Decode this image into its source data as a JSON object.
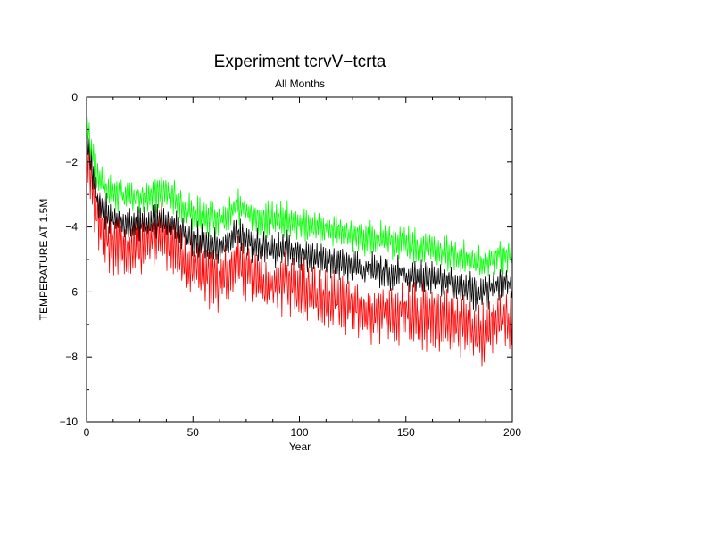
{
  "chart_data": {
    "type": "line",
    "title": "Experiment tcrvV−tcrta",
    "subtitle": "All Months",
    "xlabel": "Year",
    "ylabel": "TEMPERATURE AT 1.5M",
    "xlim": [
      0,
      200
    ],
    "ylim": [
      -10,
      0
    ],
    "xticks": [
      0,
      50,
      100,
      150,
      200
    ],
    "yticks": [
      0,
      -2,
      -4,
      -6,
      -8,
      -10
    ],
    "grid": false,
    "legend": "none",
    "x_step_years": 0.25,
    "series": [
      {
        "color": "#00ff00",
        "description": "upper envelope",
        "x": [
          0,
          2,
          5,
          10,
          15,
          20,
          25,
          30,
          35,
          40,
          45,
          50,
          55,
          60,
          65,
          70,
          75,
          80,
          85,
          90,
          95,
          100,
          105,
          110,
          115,
          120,
          125,
          130,
          135,
          140,
          145,
          150,
          155,
          160,
          165,
          170,
          175,
          180,
          185,
          190,
          195,
          200
        ],
        "mean": [
          -0.8,
          -1.5,
          -2.4,
          -2.9,
          -3.0,
          -3.1,
          -3.1,
          -3.1,
          -2.9,
          -3.0,
          -3.3,
          -3.6,
          -3.7,
          -3.7,
          -3.8,
          -3.3,
          -3.5,
          -3.7,
          -3.8,
          -3.8,
          -3.8,
          -3.9,
          -4.0,
          -4.0,
          -4.1,
          -4.1,
          -4.2,
          -4.3,
          -4.4,
          -4.4,
          -4.5,
          -4.5,
          -4.6,
          -4.6,
          -4.7,
          -4.8,
          -4.9,
          -5.0,
          -5.2,
          -5.0,
          -4.8,
          -4.9
        ],
        "amplitude": 0.45
      },
      {
        "color": "#000000",
        "description": "middle series",
        "x": [
          0,
          2,
          5,
          10,
          15,
          20,
          25,
          30,
          35,
          40,
          45,
          50,
          55,
          60,
          65,
          70,
          75,
          80,
          85,
          90,
          95,
          100,
          105,
          110,
          115,
          120,
          125,
          130,
          135,
          140,
          145,
          150,
          155,
          160,
          165,
          170,
          175,
          180,
          185,
          190,
          195,
          200
        ],
        "mean": [
          -1.0,
          -2.0,
          -3.1,
          -3.6,
          -3.8,
          -3.9,
          -3.9,
          -3.9,
          -3.7,
          -3.9,
          -4.2,
          -4.4,
          -4.5,
          -4.6,
          -4.6,
          -4.2,
          -4.4,
          -4.6,
          -4.7,
          -4.7,
          -4.7,
          -4.8,
          -4.9,
          -5.0,
          -5.1,
          -5.1,
          -5.2,
          -5.3,
          -5.3,
          -5.4,
          -5.4,
          -5.5,
          -5.5,
          -5.6,
          -5.6,
          -5.7,
          -5.8,
          -5.9,
          -6.1,
          -5.9,
          -5.7,
          -5.8
        ],
        "amplitude": 0.45
      },
      {
        "color": "#ff0000",
        "description": "lower envelope",
        "x": [
          0,
          2,
          5,
          10,
          15,
          20,
          25,
          30,
          35,
          40,
          45,
          50,
          55,
          60,
          65,
          70,
          75,
          80,
          85,
          90,
          95,
          100,
          105,
          110,
          115,
          120,
          125,
          130,
          135,
          140,
          145,
          150,
          155,
          160,
          165,
          170,
          175,
          180,
          185,
          190,
          195,
          200
        ],
        "mean": [
          -1.4,
          -2.4,
          -3.8,
          -4.4,
          -4.6,
          -4.8,
          -4.6,
          -4.4,
          -4.1,
          -4.5,
          -5.0,
          -5.3,
          -5.4,
          -5.6,
          -5.6,
          -5.1,
          -5.3,
          -5.6,
          -5.8,
          -5.7,
          -5.8,
          -6.0,
          -6.0,
          -6.2,
          -6.3,
          -6.3,
          -6.4,
          -6.6,
          -6.7,
          -6.6,
          -6.6,
          -6.6,
          -6.7,
          -6.7,
          -6.8,
          -6.9,
          -7.0,
          -7.1,
          -7.4,
          -7.0,
          -6.8,
          -6.9
        ],
        "amplitude": 0.8
      }
    ]
  }
}
